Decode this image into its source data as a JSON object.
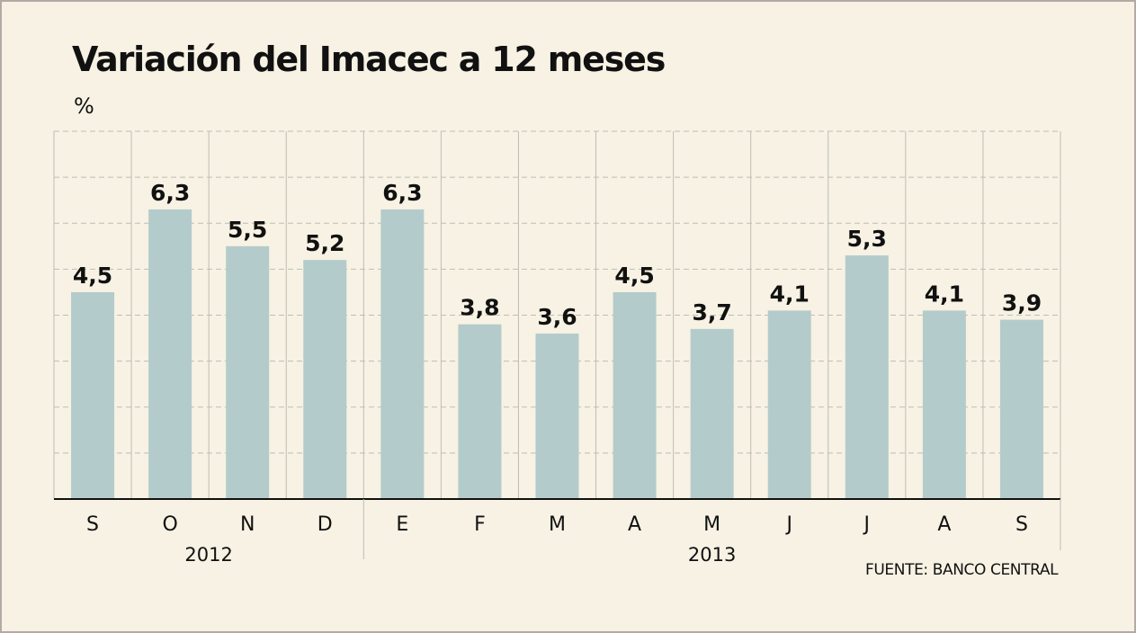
{
  "chart_data": {
    "type": "bar",
    "title": "Variación del Imacec a 12 meses",
    "unit": "%",
    "source": "FUENTE: BANCO CENTRAL",
    "categories": [
      "S",
      "O",
      "N",
      "D",
      "E",
      "F",
      "M",
      "A",
      "M",
      "J",
      "J",
      "A",
      "S"
    ],
    "values": [
      4.5,
      6.3,
      5.5,
      5.2,
      6.3,
      3.8,
      3.6,
      4.5,
      3.7,
      4.1,
      5.3,
      4.1,
      3.9
    ],
    "value_labels": [
      "4,5",
      "6,3",
      "5,5",
      "5,2",
      "6,3",
      "3,8",
      "3,6",
      "4,5",
      "3,7",
      "4,1",
      "5,3",
      "4,1",
      "3,9"
    ],
    "year_groups": [
      {
        "label": "2012",
        "start": 0,
        "end": 3
      },
      {
        "label": "2013",
        "start": 4,
        "end": 12
      }
    ],
    "ylim": [
      0,
      8
    ],
    "grid": true,
    "colors": {
      "bar": "#b4cbcb",
      "background": "#f7f2e3",
      "grid": "#bdbdb6"
    }
  }
}
